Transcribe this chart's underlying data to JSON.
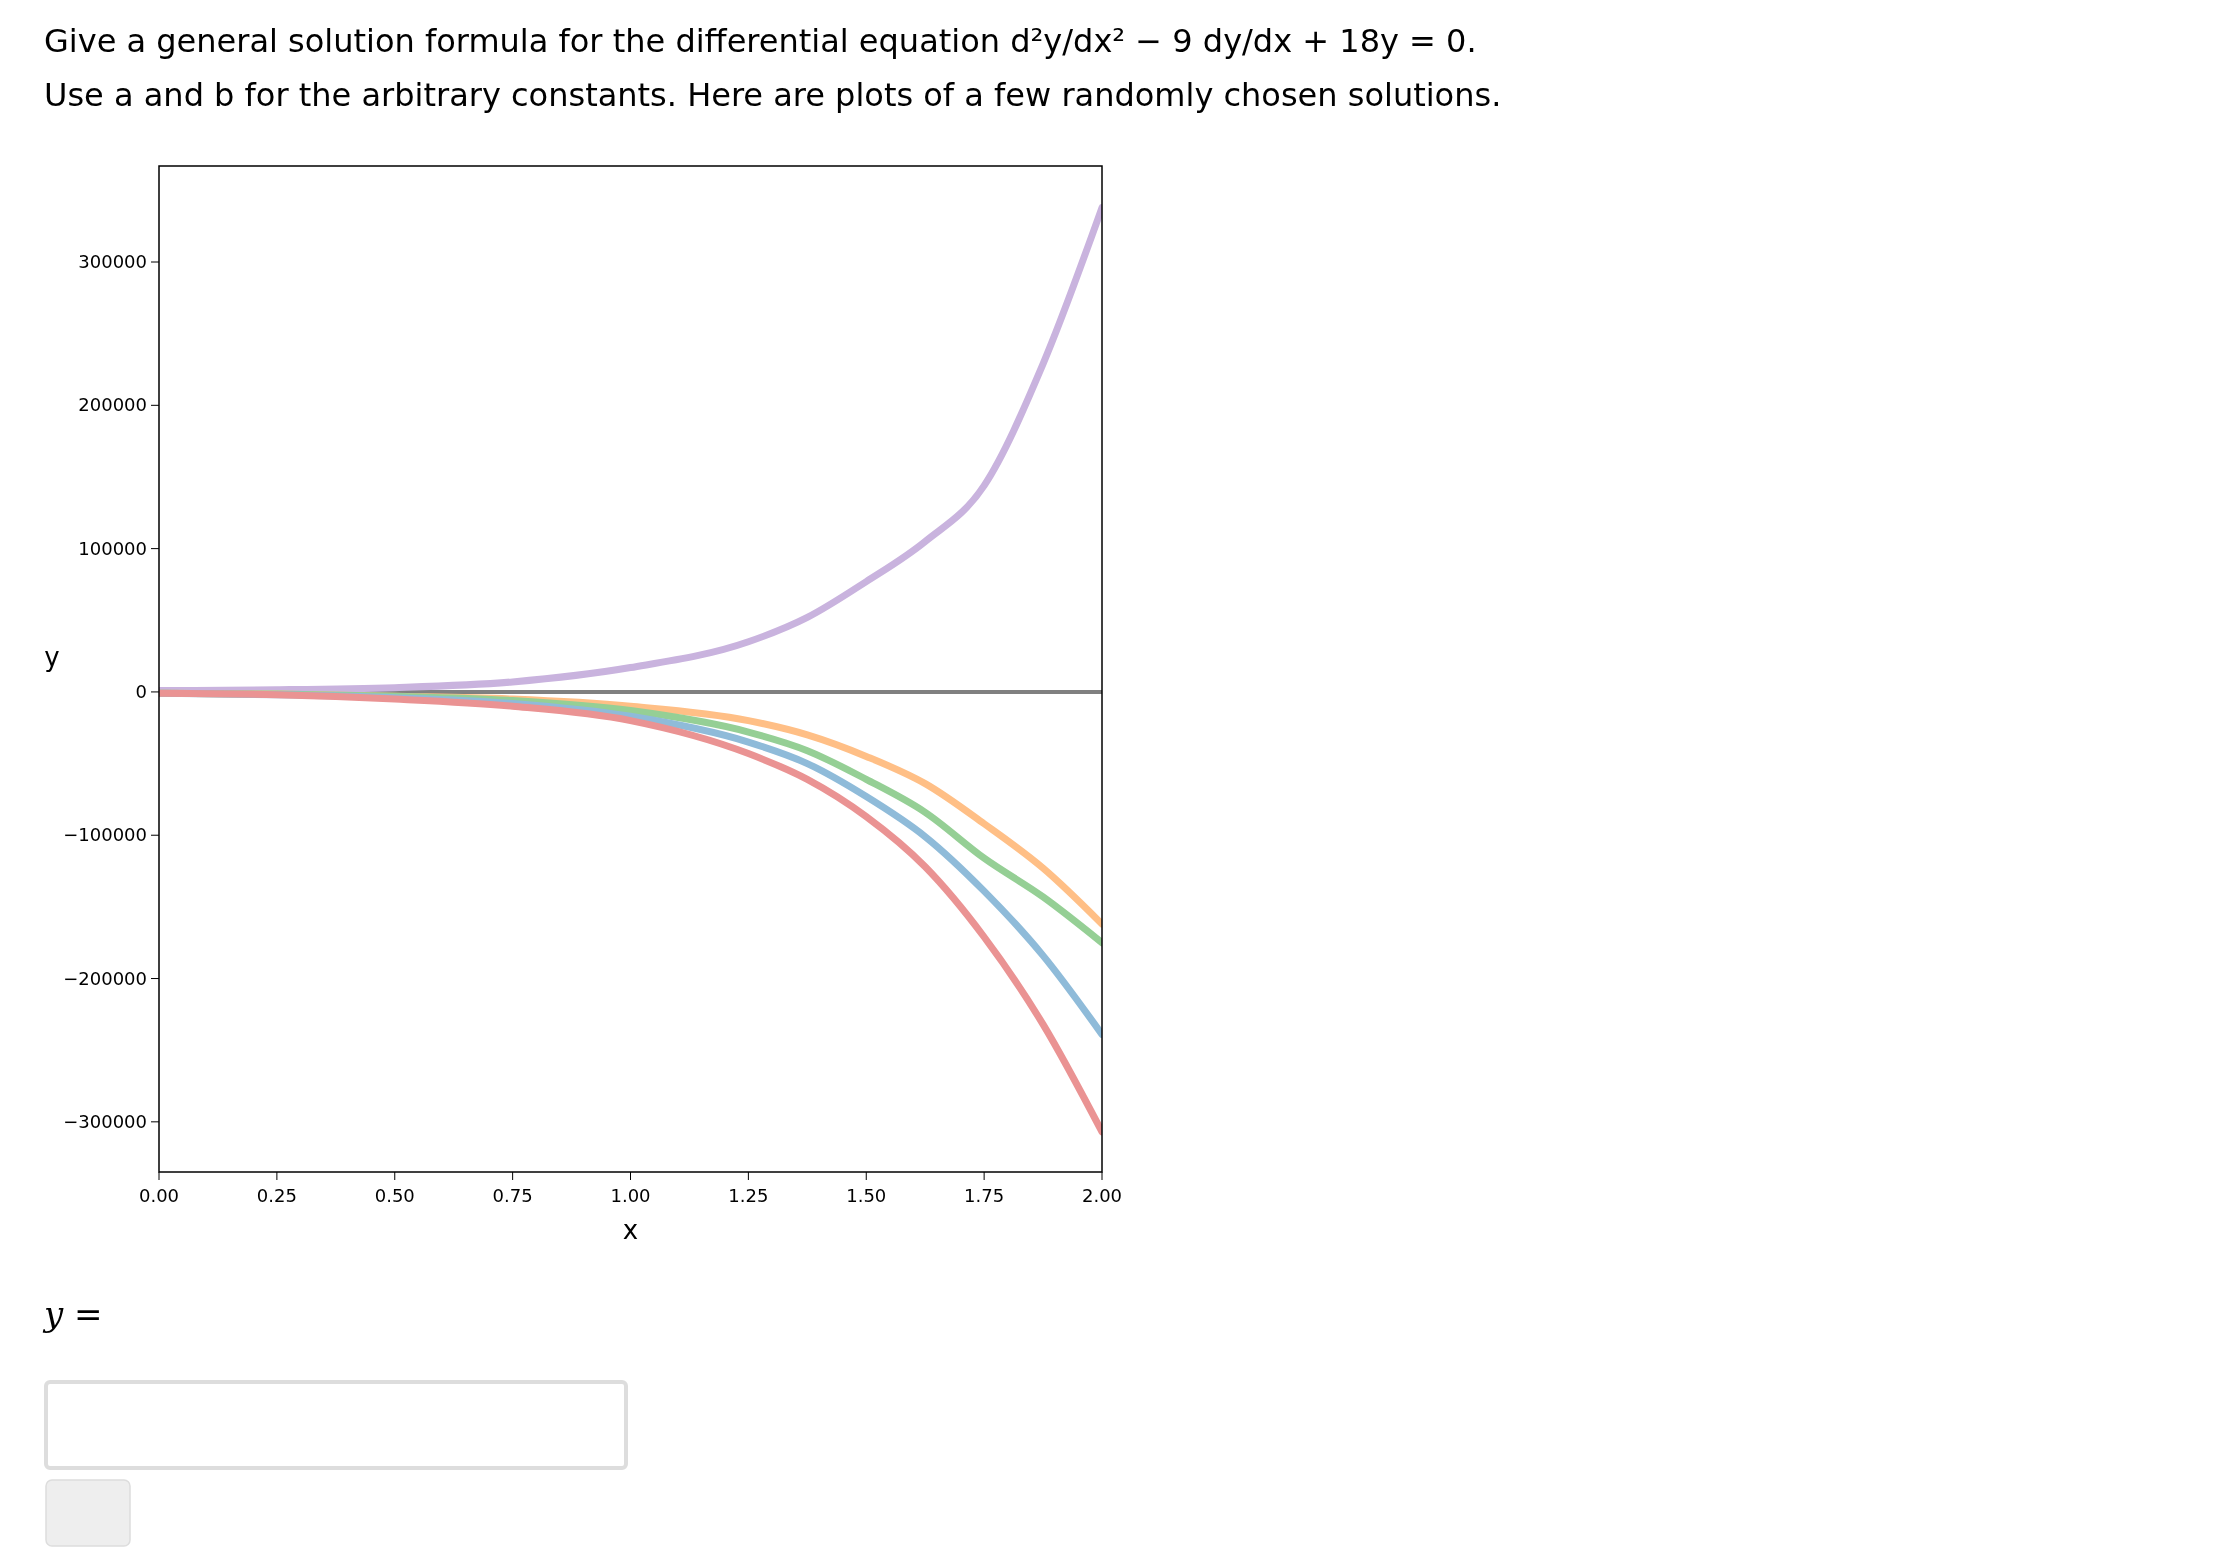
{
  "chart_data": {
    "type": "line",
    "title": "Give a general solution formula for the differential equation d²y/dx² − 9 dy/dx + 18y = 0.",
    "subtitle": "Use a and b for the arbitrary constants. Here are plots of a few randomly chosen solutions.",
    "xlabel": "x",
    "ylabel": "y",
    "annotations": [
      "y ="
    ],
    "x": [
      0,
      0.25,
      0.5,
      0.75,
      1,
      1.25,
      1.375,
      1.5,
      1.625,
      1.75,
      1.875,
      2
    ],
    "series": [
      {
        "color": "#c9b3de",
        "values": [
          1000,
          1500,
          3000,
          7000,
          17000,
          35000,
          52000,
          77000,
          105000,
          144000,
          229000,
          338000
        ]
      },
      {
        "color": "#ffbf86",
        "values": [
          -1000,
          -1500,
          -3000,
          -5000,
          -10000,
          -20000,
          -30000,
          -45000,
          -64000,
          -92000,
          -123000,
          -162000
        ]
      },
      {
        "color": "#95cf95",
        "values": [
          -1000,
          -1500,
          -3000,
          -6000,
          -13000,
          -28000,
          -41000,
          -61000,
          -84000,
          -116000,
          -143000,
          -175000
        ]
      },
      {
        "color": "#8fbbd9",
        "values": [
          -1000,
          -2000,
          -4000,
          -8000,
          -17000,
          -35000,
          -50000,
          -73000,
          -101000,
          -139000,
          -184000,
          -239000
        ]
      },
      {
        "color": "#ea9393",
        "values": [
          -1000,
          -2000,
          -5000,
          -10000,
          -20000,
          -43000,
          -61000,
          -87000,
          -122000,
          -171000,
          -232000,
          -307000
        ]
      }
    ],
    "ref_lines": [
      {
        "axis": "y",
        "value": 0,
        "color": "#808080"
      }
    ],
    "xlim": [
      0,
      2
    ],
    "ylim": [
      -335000,
      367000
    ],
    "xticks": [
      {
        "value": 0,
        "label": "0.00"
      },
      {
        "value": 0.25,
        "label": "0.25"
      },
      {
        "value": 0.5,
        "label": "0.50"
      },
      {
        "value": 0.75,
        "label": "0.75"
      },
      {
        "value": 1,
        "label": "1.00"
      },
      {
        "value": 1.25,
        "label": "1.25"
      },
      {
        "value": 1.5,
        "label": "1.50"
      },
      {
        "value": 1.75,
        "label": "1.75"
      },
      {
        "value": 2,
        "label": "2.00"
      }
    ],
    "yticks": [
      {
        "value": -300000,
        "label": "−300000"
      },
      {
        "value": -200000,
        "label": "−200000"
      },
      {
        "value": -100000,
        "label": "−100000"
      },
      0,
      100000,
      200000,
      300000
    ],
    "grid": false,
    "marker": "none",
    "line_style": "solid"
  }
}
